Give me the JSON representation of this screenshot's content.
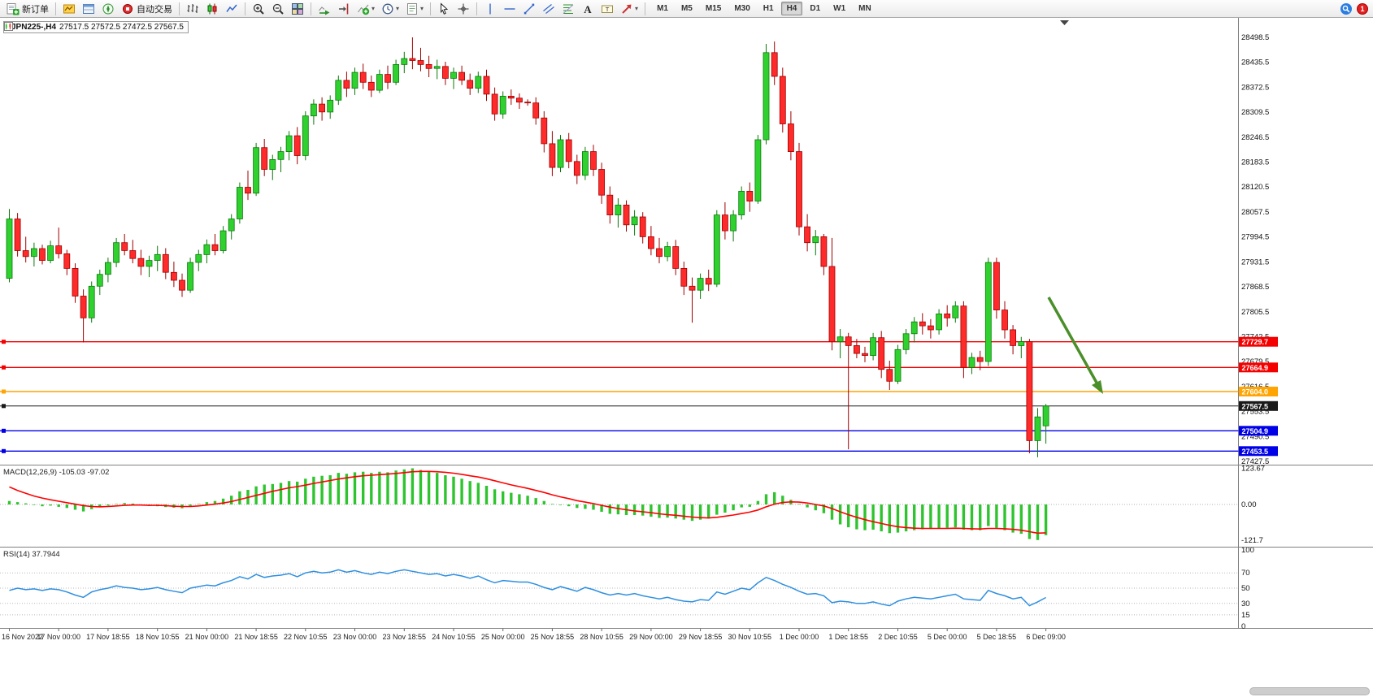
{
  "toolbar": {
    "new_order_label": "新订单",
    "auto_trading_label": "自动交易",
    "timeframes": [
      "M1",
      "M5",
      "M15",
      "M30",
      "H1",
      "H4",
      "D1",
      "W1",
      "MN"
    ],
    "active_timeframe": "H4",
    "notification_count": "1",
    "icons": [
      "new-order",
      "market-watch",
      "data-window",
      "navigator",
      "auto-trading",
      "bar-chart",
      "candlestick-chart",
      "line-chart",
      "zoom-in",
      "zoom-out",
      "tile-windows",
      "auto-scroll",
      "chart-shift",
      "indicators",
      "periods",
      "templates",
      "cursor",
      "crosshair",
      "vertical-line",
      "horizontal-line",
      "trendline",
      "equidistant-channel",
      "fibonacci",
      "text",
      "text-label",
      "arrows",
      "search",
      "notifications"
    ]
  },
  "chart": {
    "symbol_period": "JPN225-,H4",
    "ohlc_display": "27517.5 27572.5 27472.5 27567.5"
  },
  "indicators": {
    "macd_label": "MACD(12,26,9) -105.03 -97.02",
    "rsi_label": "RSI(14) 37.7944"
  },
  "chart_data": {
    "type": "candlestick",
    "symbol": "JPN225-",
    "period": "H4",
    "current_ohlc": {
      "open": 27517.5,
      "high": 27572.5,
      "low": 27472.5,
      "close": 27567.5
    },
    "y_range": [
      27427.5,
      28498.5
    ],
    "price_axis_labels": [
      "28498.5",
      "28435.5",
      "28372.5",
      "28309.5",
      "28246.5",
      "28183.5",
      "28120.5",
      "28057.5",
      "27994.5",
      "27931.5",
      "27868.5",
      "27805.5",
      "27742.5",
      "27679.5",
      "27616.5",
      "27553.5",
      "27490.5",
      "27427.5"
    ],
    "time_labels": [
      "16 Nov 2022",
      "17 Nov 00:00",
      "17 Nov 18:55",
      "18 Nov 10:55",
      "21 Nov 00:00",
      "21 Nov 18:55",
      "22 Nov 10:55",
      "23 Nov 00:00",
      "23 Nov 18:55",
      "24 Nov 10:55",
      "25 Nov 00:00",
      "25 Nov 18:55",
      "28 Nov 10:55",
      "29 Nov 00:00",
      "29 Nov 18:55",
      "30 Nov 10:55",
      "1 Dec 00:00",
      "1 Dec 18:55",
      "2 Dec 10:55",
      "5 Dec 00:00",
      "5 Dec 18:55",
      "6 Dec 09:00"
    ],
    "label_every": 6,
    "colors": {
      "up": "#2fd12f",
      "up_stroke": "#0a7a0a",
      "down": "#ff2a2a",
      "down_stroke": "#a00000",
      "arrow": "#4a8f29"
    },
    "hlines": [
      {
        "label": "27729.7",
        "value": 27729.7,
        "color": "#f40000"
      },
      {
        "label": "27664.9",
        "value": 27664.9,
        "color": "#f40000"
      },
      {
        "label": "27604.0",
        "value": 27604.0,
        "color": "#ffa400"
      },
      {
        "label": "27567.5",
        "value": 27567.5,
        "color": "#1a1a1a"
      },
      {
        "label": "27504.9",
        "value": 27504.9,
        "color": "#0000e8"
      },
      {
        "label": "27453.5",
        "value": 27453.5,
        "color": "#0000e8"
      }
    ],
    "arrow_annotation": {
      "from_price": 27840,
      "to_price": 27604,
      "color": "#4a8f29"
    },
    "candles": [
      [
        27890,
        28065,
        27880,
        28040
      ],
      [
        28040,
        28055,
        27945,
        27960
      ],
      [
        27960,
        27995,
        27930,
        27945
      ],
      [
        27945,
        27980,
        27920,
        27965
      ],
      [
        27965,
        27975,
        27925,
        27935
      ],
      [
        27935,
        27985,
        27928,
        27972
      ],
      [
        27972,
        28018,
        27940,
        27952
      ],
      [
        27952,
        27962,
        27898,
        27915
      ],
      [
        27915,
        27928,
        27828,
        27845
      ],
      [
        27845,
        27862,
        27728,
        27790
      ],
      [
        27790,
        27882,
        27778,
        27870
      ],
      [
        27870,
        27912,
        27848,
        27900
      ],
      [
        27900,
        27942,
        27880,
        27930
      ],
      [
        27930,
        27992,
        27918,
        27980
      ],
      [
        27980,
        28002,
        27948,
        27960
      ],
      [
        27960,
        27987,
        27928,
        27940
      ],
      [
        27940,
        27962,
        27898,
        27920
      ],
      [
        27920,
        27947,
        27893,
        27935
      ],
      [
        27935,
        27972,
        27908,
        27950
      ],
      [
        27950,
        27966,
        27888,
        27905
      ],
      [
        27905,
        27932,
        27868,
        27885
      ],
      [
        27885,
        27902,
        27843,
        27860
      ],
      [
        27860,
        27942,
        27853,
        27930
      ],
      [
        27930,
        27962,
        27908,
        27950
      ],
      [
        27950,
        27988,
        27928,
        27975
      ],
      [
        27975,
        28002,
        27948,
        27960
      ],
      [
        27960,
        28022,
        27953,
        28010
      ],
      [
        28010,
        28052,
        27988,
        28040
      ],
      [
        28040,
        28132,
        28028,
        28120
      ],
      [
        28120,
        28162,
        28088,
        28105
      ],
      [
        28105,
        28232,
        28098,
        28220
      ],
      [
        28220,
        28242,
        28148,
        28165
      ],
      [
        28165,
        28202,
        28138,
        28190
      ],
      [
        28190,
        28222,
        28158,
        28210
      ],
      [
        28210,
        28262,
        28188,
        28250
      ],
      [
        28250,
        28272,
        28178,
        28200
      ],
      [
        28200,
        28312,
        28188,
        28300
      ],
      [
        28300,
        28342,
        28278,
        28330
      ],
      [
        28330,
        28347,
        28288,
        28310
      ],
      [
        28310,
        28352,
        28293,
        28340
      ],
      [
        28340,
        28402,
        28328,
        28390
      ],
      [
        28390,
        28412,
        28348,
        28370
      ],
      [
        28370,
        28422,
        28353,
        28410
      ],
      [
        28410,
        28432,
        28368,
        28385
      ],
      [
        28385,
        28402,
        28348,
        28365
      ],
      [
        28365,
        28417,
        28358,
        28405
      ],
      [
        28405,
        28427,
        28368,
        28385
      ],
      [
        28385,
        28442,
        28378,
        28430
      ],
      [
        28430,
        28462,
        28408,
        28445
      ],
      [
        28445,
        28498.5,
        28418,
        28440
      ],
      [
        28440,
        28472,
        28413,
        28430
      ],
      [
        28430,
        28452,
        28398,
        28420
      ],
      [
        28420,
        28442,
        28393,
        28425
      ],
      [
        28425,
        28437,
        28378,
        28395
      ],
      [
        28395,
        28422,
        28368,
        28410
      ],
      [
        28410,
        28427,
        28378,
        28390
      ],
      [
        28390,
        28407,
        28353,
        28370
      ],
      [
        28370,
        28412,
        28358,
        28400
      ],
      [
        28400,
        28417,
        28338,
        28355
      ],
      [
        28355,
        28372,
        28288,
        28305
      ],
      [
        28305,
        28362,
        28293,
        28350
      ],
      [
        28350,
        28367,
        28328,
        28345
      ],
      [
        28345,
        28357,
        28318,
        28335
      ],
      [
        28335,
        28342,
        28326,
        28333
      ],
      [
        28333,
        28347,
        28278,
        28295
      ],
      [
        28295,
        28312,
        28208,
        28230
      ],
      [
        28230,
        28262,
        28148,
        28170
      ],
      [
        28170,
        28252,
        28158,
        28240
      ],
      [
        28240,
        28257,
        28168,
        28185
      ],
      [
        28185,
        28202,
        28128,
        28150
      ],
      [
        28150,
        28222,
        28138,
        28210
      ],
      [
        28210,
        28227,
        28148,
        28165
      ],
      [
        28165,
        28182,
        28078,
        28100
      ],
      [
        28100,
        28122,
        28028,
        28050
      ],
      [
        28050,
        28092,
        28018,
        28075
      ],
      [
        28075,
        28087,
        28008,
        28025
      ],
      [
        28025,
        28062,
        27998,
        28045
      ],
      [
        28045,
        28057,
        27978,
        27995
      ],
      [
        27995,
        28022,
        27948,
        27965
      ],
      [
        27965,
        27992,
        27928,
        27945
      ],
      [
        27945,
        27982,
        27933,
        27970
      ],
      [
        27970,
        27987,
        27898,
        27915
      ],
      [
        27915,
        27932,
        27848,
        27870
      ],
      [
        27870,
        27892,
        27778,
        27860
      ],
      [
        27860,
        27902,
        27838,
        27890
      ],
      [
        27890,
        27912,
        27858,
        27875
      ],
      [
        27875,
        28062,
        27868,
        28050
      ],
      [
        28050,
        28082,
        27988,
        28010
      ],
      [
        28010,
        28062,
        27983,
        28050
      ],
      [
        28050,
        28122,
        28038,
        28110
      ],
      [
        28110,
        28132,
        28058,
        28085
      ],
      [
        28085,
        28252,
        28078,
        28240
      ],
      [
        28240,
        28482,
        28228,
        28460
      ],
      [
        28460,
        28488,
        28378,
        28400
      ],
      [
        28400,
        28422,
        28258,
        28280
      ],
      [
        28280,
        28312,
        28188,
        28210
      ],
      [
        28210,
        28232,
        27998,
        28020
      ],
      [
        28020,
        28052,
        27958,
        27980
      ],
      [
        27980,
        28012,
        27948,
        27995
      ],
      [
        27995,
        28002,
        27898,
        27920
      ],
      [
        27920,
        27992,
        27708,
        27730
      ],
      [
        27730,
        27762,
        27688,
        27742
      ],
      [
        27742,
        27752,
        27458,
        27720
      ],
      [
        27720,
        27737,
        27688,
        27700
      ],
      [
        27700,
        27717,
        27678,
        27695
      ],
      [
        27695,
        27752,
        27683,
        27740
      ],
      [
        27740,
        27757,
        27638,
        27660
      ],
      [
        27660,
        27682,
        27608,
        27630
      ],
      [
        27630,
        27722,
        27623,
        27710
      ],
      [
        27710,
        27762,
        27698,
        27750
      ],
      [
        27750,
        27792,
        27728,
        27780
      ],
      [
        27780,
        27802,
        27748,
        27770
      ],
      [
        27770,
        27787,
        27738,
        27760
      ],
      [
        27760,
        27812,
        27748,
        27800
      ],
      [
        27800,
        27822,
        27768,
        27790
      ],
      [
        27790,
        27832,
        27778,
        27820
      ],
      [
        27820,
        27832,
        27638,
        27665
      ],
      [
        27665,
        27702,
        27648,
        27690
      ],
      [
        27690,
        27707,
        27658,
        27680
      ],
      [
        27680,
        27942,
        27668,
        27930
      ],
      [
        27930,
        27942,
        27788,
        27810
      ],
      [
        27810,
        27832,
        27738,
        27760
      ],
      [
        27760,
        27772,
        27698,
        27720
      ],
      [
        27720,
        27742,
        27688,
        27730
      ],
      [
        27730,
        27737,
        27448,
        27480
      ],
      [
        27480,
        27562,
        27438,
        27540
      ],
      [
        27517.5,
        27572.5,
        27472.5,
        27567.5
      ]
    ],
    "macd": {
      "params": "12,26,9",
      "main_last": -105.03,
      "signal_last": -97.02,
      "axis_labels": [
        "123.67",
        "0.00",
        "-121.7"
      ],
      "range": [
        -121.7,
        123.67
      ],
      "colors": {
        "histogram": "#2fc42f",
        "signal": "#ff0000"
      },
      "histogram": [
        12,
        8,
        4,
        -2,
        -6,
        -4,
        -8,
        -12,
        -18,
        -24,
        -16,
        -9,
        -4,
        2,
        5,
        3,
        -2,
        -5,
        -6,
        -9,
        -11,
        -13,
        -5,
        2,
        8,
        12,
        20,
        30,
        45,
        50,
        62,
        68,
        70,
        74,
        80,
        78,
        88,
        95,
        98,
        100,
        108,
        105,
        110,
        112,
        108,
        112,
        110,
        116,
        120,
        123.67,
        118,
        112,
        108,
        100,
        95,
        88,
        80,
        74,
        64,
        52,
        45,
        40,
        35,
        30,
        22,
        12,
        2,
        -2,
        -6,
        -12,
        -15,
        -18,
        -25,
        -32,
        -34,
        -36,
        -36,
        -38,
        -42,
        -46,
        -45,
        -48,
        -52,
        -56,
        -52,
        -48,
        -35,
        -28,
        -20,
        -10,
        -8,
        12,
        35,
        42,
        30,
        16,
        2,
        -10,
        -20,
        -30,
        -52,
        -68,
        -78,
        -85,
        -88,
        -86,
        -92,
        -98,
        -96,
        -92,
        -88,
        -85,
        -84,
        -82,
        -80,
        -78,
        -86,
        -88,
        -88,
        -74,
        -80,
        -88,
        -96,
        -100,
        -118,
        -121.7,
        -105.03
      ],
      "signal": [
        60,
        48,
        38,
        29,
        22,
        16,
        11,
        6,
        1,
        -4,
        -7,
        -8,
        -7,
        -5,
        -3,
        -2,
        -2,
        -3,
        -3,
        -4,
        -6,
        -7,
        -7,
        -5,
        -2,
        1,
        5,
        10,
        17,
        24,
        31,
        38,
        45,
        51,
        57,
        61,
        66,
        72,
        77,
        82,
        87,
        91,
        95,
        98,
        100,
        102,
        104,
        106,
        109,
        112,
        113,
        113,
        112,
        110,
        107,
        103,
        98,
        94,
        88,
        81,
        74,
        67,
        61,
        55,
        48,
        41,
        33,
        26,
        20,
        13,
        8,
        3,
        -3,
        -9,
        -14,
        -18,
        -22,
        -25,
        -28,
        -32,
        -35,
        -37,
        -40,
        -43,
        -45,
        -46,
        -44,
        -40,
        -36,
        -31,
        -26,
        -19,
        -8,
        1,
        7,
        9,
        8,
        5,
        0,
        -5,
        -14,
        -25,
        -35,
        -44,
        -52,
        -59,
        -65,
        -71,
        -76,
        -79,
        -81,
        -82,
        -82,
        -82,
        -82,
        -81,
        -82,
        -83,
        -84,
        -82,
        -82,
        -83,
        -85,
        -88,
        -93,
        -98,
        -97.02
      ]
    },
    "rsi": {
      "period": 14,
      "last": 37.7944,
      "axis_labels": [
        "100",
        "70",
        "50",
        "30",
        "15",
        "0"
      ],
      "axis_values": [
        100,
        70,
        50,
        30,
        15,
        0
      ],
      "levels": [
        70,
        50,
        30,
        15
      ],
      "color": "#2e8fe0",
      "range": [
        0,
        100
      ],
      "values": [
        47,
        50,
        48,
        49,
        47,
        49,
        48,
        45,
        41,
        38,
        45,
        48,
        50,
        53,
        51,
        50,
        48,
        49,
        51,
        48,
        46,
        44,
        50,
        52,
        54,
        53,
        57,
        60,
        65,
        62,
        68,
        64,
        66,
        67,
        69,
        65,
        70,
        72,
        70,
        71,
        74,
        71,
        73,
        70,
        68,
        71,
        69,
        72,
        74,
        72,
        70,
        68,
        69,
        66,
        68,
        66,
        63,
        66,
        61,
        57,
        60,
        59,
        58,
        58,
        55,
        51,
        48,
        52,
        49,
        46,
        51,
        48,
        44,
        41,
        43,
        41,
        43,
        40,
        38,
        36,
        38,
        35,
        33,
        32,
        35,
        34,
        45,
        42,
        46,
        50,
        48,
        57,
        64,
        60,
        55,
        51,
        46,
        42,
        43,
        40,
        31,
        33,
        32,
        30,
        30,
        32,
        29,
        27,
        33,
        36,
        38,
        37,
        36,
        38,
        40,
        42,
        36,
        35,
        34,
        47,
        43,
        40,
        36,
        38,
        27,
        32,
        37.79
      ]
    }
  }
}
